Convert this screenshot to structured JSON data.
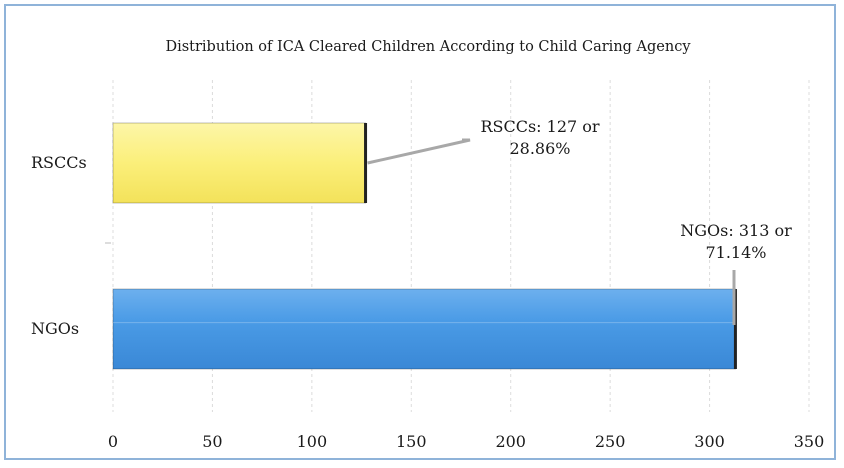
{
  "chart_data": {
    "type": "bar",
    "orientation": "horizontal",
    "title": "Distribution of ICA Cleared Children According to Child Caring Agency",
    "categories": [
      "RSCCs",
      "NGOs"
    ],
    "values": [
      127,
      313
    ],
    "data_labels": [
      [
        "RSCCs: 127 or",
        "28.86%"
      ],
      [
        "NGOs: 313 or",
        "71.14%"
      ]
    ],
    "bar_colors": [
      "#fbef7a",
      "#4a9be6"
    ],
    "xlim": [
      0,
      350
    ],
    "xticks": [
      0,
      50,
      100,
      150,
      200,
      250,
      300,
      350
    ],
    "grid": "vertical dashed",
    "xlabel": "",
    "ylabel": ""
  }
}
